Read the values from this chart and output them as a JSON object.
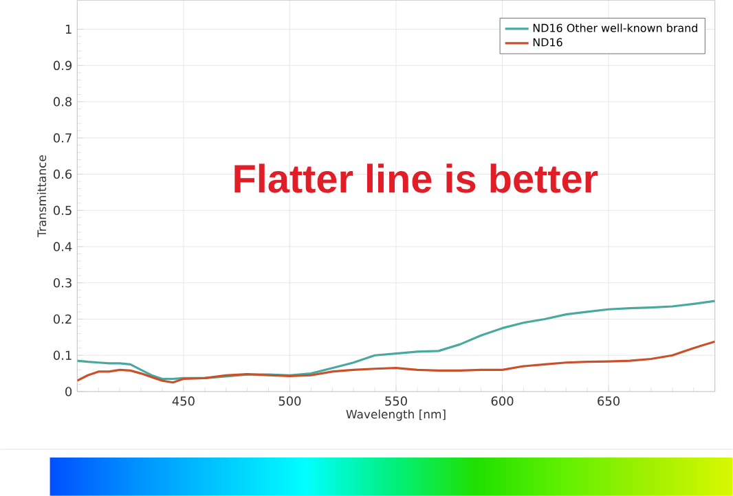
{
  "chart_data": {
    "type": "line",
    "xlabel": "Wavelength [nm]",
    "ylabel": "Transmittance",
    "annotations": [
      "Flatter line is better"
    ],
    "xlim": [
      400,
      700
    ],
    "xticks": [
      {
        "value": 400,
        "label": null
      },
      450,
      500,
      550,
      600,
      650,
      {
        "value": 700,
        "label": null
      }
    ],
    "ylim": [
      0,
      1.08
    ],
    "yticks": [
      0,
      0.1,
      0.2,
      0.3,
      0.4,
      0.5,
      0.6,
      0.7,
      0.8,
      0.9,
      1
    ],
    "grid": true,
    "legend": "top right",
    "marker": "none",
    "line_style": "solid",
    "x": [
      400,
      405,
      410,
      415,
      420,
      425,
      430,
      435,
      440,
      445,
      450,
      460,
      470,
      480,
      490,
      500,
      510,
      520,
      530,
      540,
      550,
      560,
      570,
      580,
      590,
      600,
      610,
      620,
      630,
      640,
      650,
      660,
      670,
      680,
      690,
      700
    ],
    "series": [
      {
        "name": "ND16 Other well-known brand",
        "color": "#4aa99e",
        "values": [
          0.085,
          0.082,
          0.08,
          0.078,
          0.078,
          0.075,
          0.06,
          0.045,
          0.035,
          0.035,
          0.037,
          0.037,
          0.042,
          0.047,
          0.047,
          0.045,
          0.05,
          0.065,
          0.08,
          0.1,
          0.105,
          0.11,
          0.112,
          0.13,
          0.155,
          0.175,
          0.19,
          0.2,
          0.213,
          0.22,
          0.227,
          0.23,
          0.232,
          0.235,
          0.242,
          0.25
        ]
      },
      {
        "name": "ND16",
        "color": "#c8502a",
        "values": [
          0.03,
          0.045,
          0.055,
          0.055,
          0.06,
          0.058,
          0.05,
          0.04,
          0.03,
          0.025,
          0.035,
          0.037,
          0.045,
          0.048,
          0.045,
          0.043,
          0.045,
          0.055,
          0.06,
          0.063,
          0.065,
          0.06,
          0.058,
          0.058,
          0.06,
          0.06,
          0.07,
          0.075,
          0.08,
          0.082,
          0.083,
          0.085,
          0.09,
          0.1,
          0.12,
          0.138
        ]
      }
    ]
  }
}
